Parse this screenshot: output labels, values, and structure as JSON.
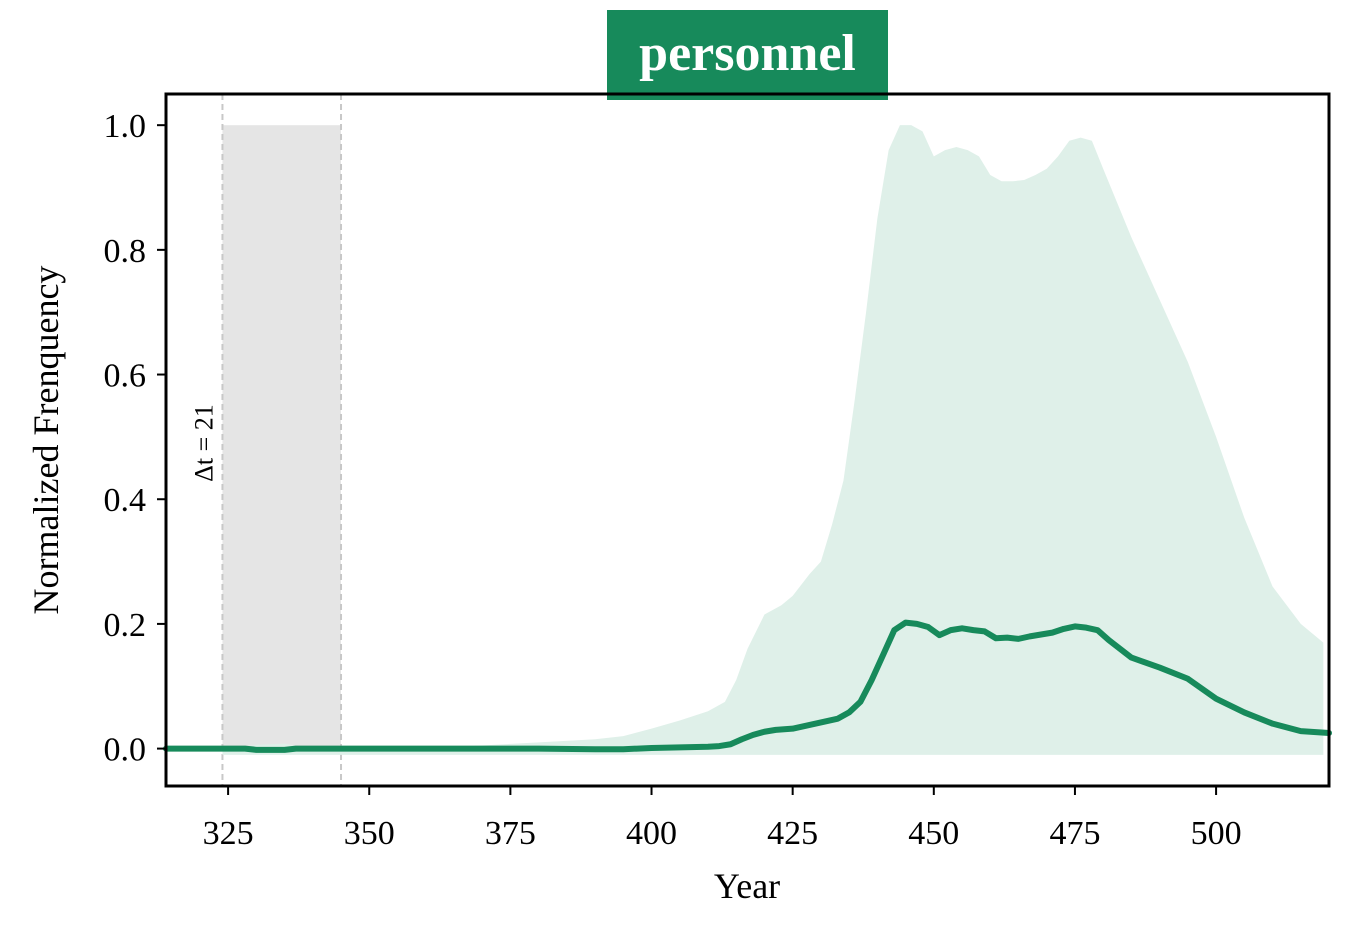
{
  "chart_data": {
    "type": "line",
    "title": "personnel",
    "xlabel": "Year",
    "ylabel": "Normalized Frenquency",
    "xlim": [
      314,
      520
    ],
    "ylim": [
      -0.06,
      1.05
    ],
    "xticks": [
      "325",
      "350",
      "375",
      "400",
      "425",
      "450",
      "475",
      "500"
    ],
    "yticks": [
      "0.0",
      "0.2",
      "0.4",
      "0.6",
      "0.8",
      "1.0"
    ],
    "grid": false,
    "colors": {
      "title_bg": "#178a5b",
      "line": "#178a5b",
      "band": "#dff0e9",
      "span": "#e5e5e5",
      "span_edge": "#c8c8c8"
    },
    "annotation": {
      "text": "Δt = 21",
      "span_start": 324,
      "span_end": 345,
      "span_top": 1.0
    },
    "series": [
      {
        "x": [
          314,
          320,
          325,
          328,
          330,
          335,
          337,
          340,
          345,
          350,
          360,
          370,
          380,
          390,
          395,
          400,
          405,
          410,
          412,
          414,
          416,
          418,
          420,
          422,
          425,
          428,
          430,
          433,
          435,
          437,
          439,
          441,
          443,
          445,
          447,
          449,
          451,
          453,
          455,
          457,
          459,
          461,
          463,
          465,
          467,
          469,
          471,
          473,
          475,
          477,
          479,
          481,
          483,
          485,
          490,
          495,
          500,
          505,
          510,
          515,
          520
        ],
        "y": [
          0.0,
          0.0,
          0.0,
          0.0,
          -0.002,
          -0.002,
          0.0,
          0.0,
          0.0,
          0.0,
          0.0,
          0.0,
          0.0,
          -0.001,
          -0.001,
          0.001,
          0.002,
          0.003,
          0.004,
          0.007,
          0.015,
          0.022,
          0.027,
          0.03,
          0.032,
          0.038,
          0.042,
          0.048,
          0.058,
          0.075,
          0.11,
          0.15,
          0.19,
          0.202,
          0.2,
          0.195,
          0.182,
          0.19,
          0.193,
          0.19,
          0.188,
          0.177,
          0.178,
          0.176,
          0.18,
          0.183,
          0.186,
          0.192,
          0.196,
          0.194,
          0.19,
          0.174,
          0.16,
          0.146,
          0.13,
          0.112,
          0.08,
          0.058,
          0.04,
          0.028,
          0.025
        ]
      }
    ],
    "band": {
      "x": [
        324,
        330,
        335,
        340,
        360,
        380,
        390,
        395,
        400,
        405,
        410,
        413,
        415,
        417,
        420,
        423,
        425,
        428,
        430,
        432,
        434,
        436,
        438,
        440,
        442,
        444,
        446,
        448,
        450,
        452,
        454,
        456,
        458,
        460,
        462,
        464,
        466,
        468,
        470,
        472,
        474,
        476,
        478,
        480,
        485,
        490,
        495,
        500,
        505,
        510,
        515,
        519
      ],
      "upper": [
        0.0,
        0.006,
        0.008,
        0.0,
        0.0,
        0.01,
        0.015,
        0.02,
        0.032,
        0.045,
        0.06,
        0.075,
        0.11,
        0.16,
        0.215,
        0.23,
        0.245,
        0.28,
        0.3,
        0.36,
        0.43,
        0.56,
        0.7,
        0.85,
        0.96,
        1.0,
        1.0,
        0.99,
        0.95,
        0.96,
        0.965,
        0.96,
        0.95,
        0.92,
        0.91,
        0.91,
        0.912,
        0.92,
        0.93,
        0.95,
        0.975,
        0.98,
        0.975,
        0.93,
        0.82,
        0.72,
        0.62,
        0.5,
        0.37,
        0.26,
        0.2,
        0.17
      ],
      "baseline": -0.01
    }
  }
}
